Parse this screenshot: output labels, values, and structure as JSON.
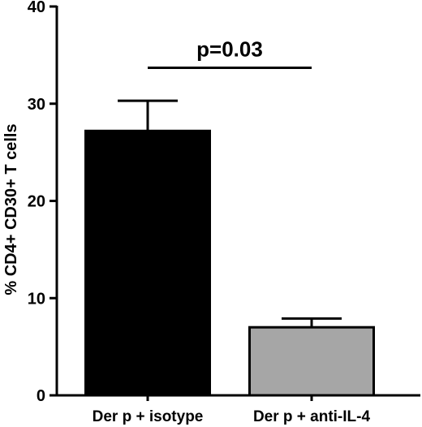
{
  "chart_data": {
    "type": "bar",
    "categories": [
      "Der p + isotype",
      "Der p + anti-IL-4"
    ],
    "values": [
      27.2,
      7.0
    ],
    "errors": [
      3.1,
      0.9
    ],
    "bar_colors": [
      "#000000",
      "#a6a6a6"
    ],
    "ylabel": "% CD4+ CD30+ T cells",
    "xlabel": "",
    "ylim": [
      0,
      40
    ],
    "yticks": [
      0,
      10,
      20,
      30,
      40
    ],
    "grid": false,
    "annotations": [
      {
        "text": "p=0.03",
        "from_category": 0,
        "to_category": 1,
        "y": 33.7
      }
    ]
  }
}
